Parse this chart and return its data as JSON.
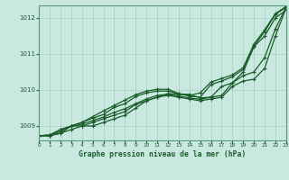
{
  "title": "Graphe pression niveau de la mer (hPa)",
  "background_color": "#c8e8e0",
  "plot_bg_color": "#c8e8e0",
  "grid_color": "#a8cfc4",
  "line_color": "#1a5c2a",
  "border_color": "#5a9a7a",
  "xlim": [
    0,
    23
  ],
  "ylim": [
    1008.6,
    1012.35
  ],
  "yticks": [
    1009,
    1010,
    1011,
    1012
  ],
  "xticks": [
    0,
    1,
    2,
    3,
    4,
    5,
    6,
    7,
    8,
    9,
    10,
    11,
    12,
    13,
    14,
    15,
    16,
    17,
    18,
    19,
    20,
    21,
    22,
    23
  ],
  "series": [
    [
      1008.73,
      1008.73,
      1008.8,
      1008.9,
      1009.0,
      1009.0,
      1009.1,
      1009.2,
      1009.3,
      1009.5,
      1009.7,
      1009.8,
      1009.9,
      1009.88,
      1009.88,
      1009.78,
      1009.8,
      1010.1,
      1010.2,
      1010.5,
      1011.2,
      1011.5,
      1012.0,
      1012.22
    ],
    [
      1008.73,
      1008.73,
      1008.8,
      1009.0,
      1009.0,
      1009.1,
      1009.2,
      1009.3,
      1009.4,
      1009.6,
      1009.7,
      1009.8,
      1009.85,
      1009.8,
      1009.75,
      1009.7,
      1009.75,
      1009.8,
      1010.1,
      1010.25,
      1010.3,
      1010.6,
      1011.5,
      1012.28
    ],
    [
      1008.73,
      1008.73,
      1008.85,
      1009.0,
      1009.05,
      1009.15,
      1009.25,
      1009.38,
      1009.48,
      1009.62,
      1009.75,
      1009.85,
      1009.88,
      1009.83,
      1009.78,
      1009.74,
      1009.8,
      1009.85,
      1010.2,
      1010.4,
      1010.5,
      1010.9,
      1011.7,
      1012.3
    ],
    [
      1008.73,
      1008.75,
      1008.9,
      1009.0,
      1009.1,
      1009.22,
      1009.32,
      1009.52,
      1009.62,
      1009.82,
      1009.92,
      1009.97,
      1009.97,
      1009.9,
      1009.83,
      1009.8,
      1010.15,
      1010.25,
      1010.37,
      1010.57,
      1011.22,
      1011.62,
      1012.1,
      1012.3
    ],
    [
      1008.73,
      1008.75,
      1008.9,
      1009.0,
      1009.1,
      1009.26,
      1009.42,
      1009.57,
      1009.72,
      1009.87,
      1009.97,
      1010.02,
      1010.02,
      1009.9,
      1009.85,
      1009.92,
      1010.22,
      1010.32,
      1010.42,
      1010.62,
      1011.27,
      1011.67,
      1012.12,
      1012.32
    ]
  ]
}
